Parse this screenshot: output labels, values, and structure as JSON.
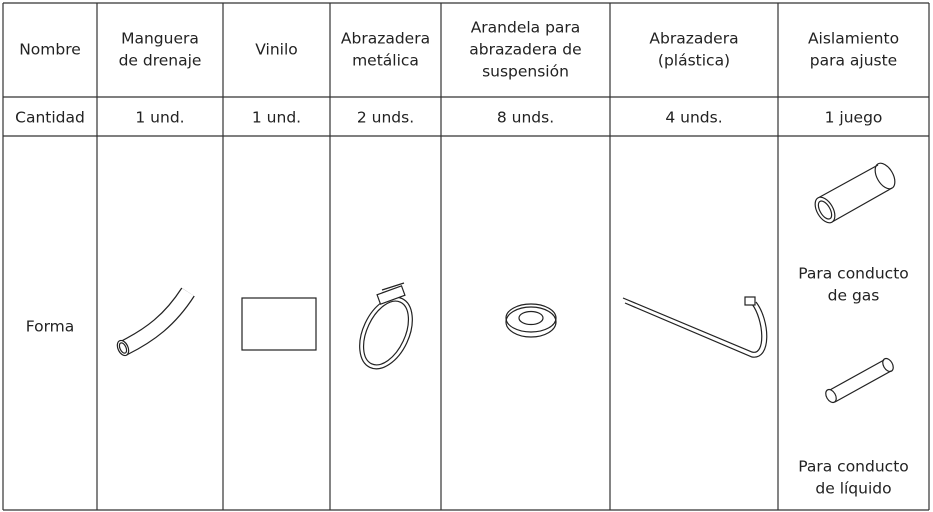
{
  "table": {
    "header": [
      [
        "Nombre"
      ],
      [
        "Manguera",
        "de drenaje"
      ],
      [
        "Vinilo"
      ],
      [
        "Abrazadera",
        "metálica"
      ],
      [
        "Arandela para",
        "abrazadera de",
        "suspensión"
      ],
      [
        "Abrazadera",
        "(plástica)"
      ],
      [
        "Aislamiento",
        "para ajuste"
      ]
    ],
    "quantity": [
      "Cantidad",
      "1 und.",
      "1 und.",
      "2 unds.",
      "8 unds.",
      "4 unds.",
      "1 juego"
    ],
    "shape_label": "Forma",
    "insulation_notes": [
      [
        "Para conducto",
        "de gas"
      ],
      [
        "Para conducto",
        "de líquido"
      ]
    ]
  }
}
